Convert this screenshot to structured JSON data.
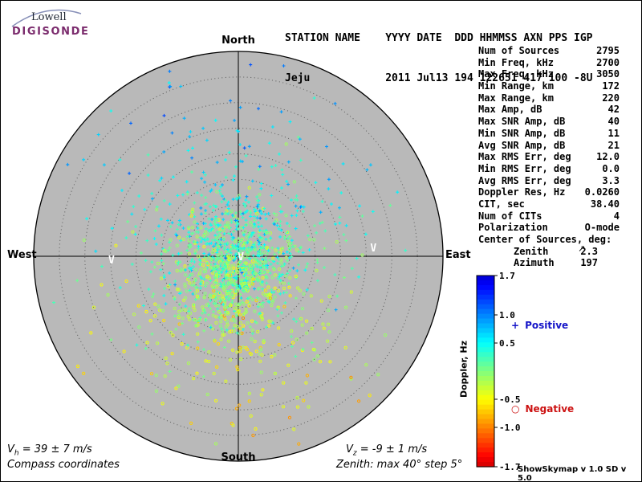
{
  "logo": {
    "line1": "Lowell",
    "line2": "DIGISONDE",
    "color": "#7b2b6d"
  },
  "header": {
    "labels_line": "STATION NAME    YYYY DATE  DDD HHMMSS AXN PPS IGP",
    "values_line": "Jeju            2011 Jul13 194 122651 417 100 -8U"
  },
  "compass": {
    "north": "North",
    "south": "South",
    "east": "East",
    "west": "West"
  },
  "stats": {
    "rows": [
      {
        "label": "Num of Sources",
        "value": "2795"
      },
      {
        "label": "Min Freq, kHz",
        "value": "2700"
      },
      {
        "label": "Max Freq, kHz",
        "value": "3050"
      },
      {
        "label": "Min Range, km",
        "value": "172"
      },
      {
        "label": "Max Range, km",
        "value": "220"
      },
      {
        "label": "Max Amp, dB",
        "value": "42"
      },
      {
        "label": "Max SNR Amp, dB",
        "value": "40"
      },
      {
        "label": "Min SNR Amp, dB",
        "value": "11"
      },
      {
        "label": "Avg SNR Amp, dB",
        "value": "21"
      },
      {
        "label": "Max RMS Err, deg",
        "value": "12.0"
      },
      {
        "label": "Min RMS Err, deg",
        "value": "0.0"
      },
      {
        "label": "Avg RMS Err, deg",
        "value": "3.3"
      },
      {
        "label": "Doppler Res, Hz",
        "value": "0.0260"
      },
      {
        "label": "CIT, sec",
        "value": "38.40"
      },
      {
        "label": "Num of CITs",
        "value": "4"
      },
      {
        "label": "Polarization",
        "value": "O-mode"
      },
      {
        "label": "Center of Sources, deg:",
        "value": ""
      },
      {
        "label": "Zenith",
        "value": "2.3",
        "indent": true
      },
      {
        "label": "Azimuth",
        "value": "197",
        "indent": true
      }
    ]
  },
  "footer": {
    "vh_base": "V",
    "vh_sub": "h",
    "vh_rest": " = 39 ± 7 m/s",
    "vz_base": "V",
    "vz_sub": "z",
    "vz_rest": " = -9 ± 1 m/s",
    "coords_note": "Compass coordinates",
    "zenith_note": "Zenith: max 40°  step 5°",
    "credit": "ShowSkymap v 1.0  SD v 5.0"
  },
  "misc": {
    "cursor_glyph": "↗"
  },
  "chart_data": {
    "type": "scatter",
    "projection": "polar-skymap",
    "compass_labels": [
      "North",
      "East",
      "South",
      "West"
    ],
    "zenith_max_deg": 40,
    "zenith_step_deg": 5,
    "num_rings": 8,
    "num_sources": 2795,
    "center_of_sources": {
      "zenith_deg": 2.3,
      "azimuth_deg": 197
    },
    "velocities": {
      "vh_ms": "39 ± 7",
      "vz_ms": "-9 ± 1"
    },
    "colorbar": {
      "label": "Doppler, Hz",
      "min": -1.7,
      "max": 1.7,
      "ticks": [
        {
          "v": 1.7,
          "label": "1.7"
        },
        {
          "v": 1.0,
          "label": "1.0"
        },
        {
          "v": 0.5,
          "label": "0.5"
        },
        {
          "v": -0.5,
          "label": "-0.5"
        },
        {
          "v": -1.0,
          "label": "-1.0"
        },
        {
          "v": -1.7,
          "label": "-1.7"
        }
      ]
    },
    "legend": [
      {
        "marker": "+",
        "label": "Positive",
        "color": "#1515c8"
      },
      {
        "marker": "○",
        "label": "Negative",
        "color": "#cc1111"
      }
    ],
    "disk_color": "#b9b9b9",
    "point_cloud": {
      "seed": 1234,
      "count": 1600,
      "core_frac": 0.55,
      "core_sigma_deg": 5.5,
      "mid_frac": 0.33,
      "mid_sigma_deg": 11,
      "halo_sigma_deg": 24,
      "doppler_mean_hz": 0.15,
      "doppler_sigma_hz": 0.3,
      "doppler_vertical_gradient_hz": -0.9
    },
    "v_marker_glyph": "V",
    "v_markers": [
      {
        "dx": -0.62,
        "dy": 0.035
      },
      {
        "dx": 0.012,
        "dy": 0.02
      },
      {
        "dx": 0.66,
        "dy": -0.024
      }
    ]
  }
}
